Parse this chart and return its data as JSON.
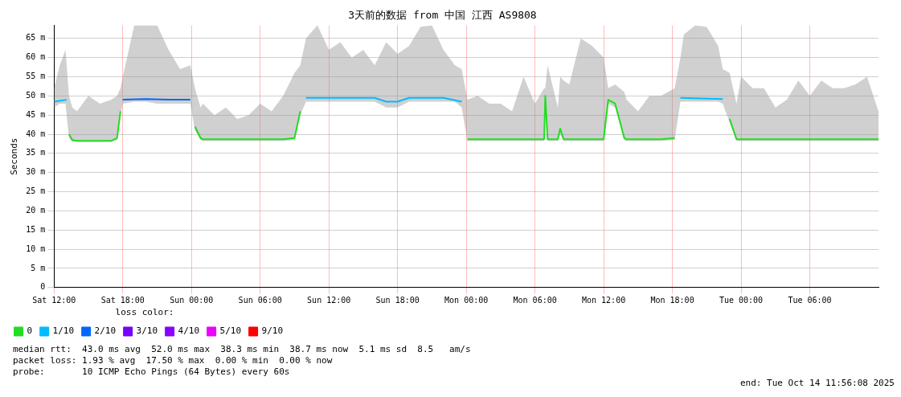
{
  "chart_data": {
    "type": "line",
    "title": "3天前的数据 from 中国 江西 AS9808",
    "ylabel": "Seconds",
    "legend_title": "loss color:",
    "legend": "bottom",
    "grid": true,
    "marker": "none",
    "line_style": "solid",
    "xlim": [
      "2025-10-11T12:00",
      "2025-10-14T12:00"
    ],
    "ylim": [
      0,
      68.4
    ],
    "xticks": [
      {
        "value": "2025-10-11T12:00",
        "label": "Sat 12:00"
      },
      {
        "value": "2025-10-11T18:00",
        "label": "Sat 18:00"
      },
      {
        "value": "2025-10-12T00:00",
        "label": "Sun 00:00"
      },
      {
        "value": "2025-10-12T06:00",
        "label": "Sun 06:00"
      },
      {
        "value": "2025-10-12T12:00",
        "label": "Sun 12:00"
      },
      {
        "value": "2025-10-12T18:00",
        "label": "Sun 18:00"
      },
      {
        "value": "2025-10-13T00:00",
        "label": "Mon 00:00"
      },
      {
        "value": "2025-10-13T06:00",
        "label": "Mon 06:00"
      },
      {
        "value": "2025-10-13T12:00",
        "label": "Mon 12:00"
      },
      {
        "value": "2025-10-13T18:00",
        "label": "Mon 18:00"
      },
      {
        "value": "2025-10-14T00:00",
        "label": "Tue 00:00"
      },
      {
        "value": "2025-10-14T06:00",
        "label": "Tue 06:00"
      }
    ],
    "yticks": [
      0,
      {
        "value": 5,
        "label": "5 m"
      },
      {
        "value": 10,
        "label": "10 m"
      },
      {
        "value": 15,
        "label": "15 m"
      },
      {
        "value": 20,
        "label": "20 m"
      },
      {
        "value": 25,
        "label": "25 m"
      },
      {
        "value": 30,
        "label": "30 m"
      },
      {
        "value": 35,
        "label": "35 m"
      },
      {
        "value": 40,
        "label": "40 m"
      },
      {
        "value": 45,
        "label": "45 m"
      },
      {
        "value": 50,
        "label": "50 m"
      },
      {
        "value": 55,
        "label": "55 m"
      },
      {
        "value": 60,
        "label": "60 m"
      },
      {
        "value": 65,
        "label": "65 m"
      }
    ],
    "series": [
      {
        "name": "0",
        "color": "#22dd22",
        "x": [
          "2025-10-11T12:00",
          "2025-10-11T12:30",
          "2025-10-11T13:00",
          "2025-10-11T13:18",
          "2025-10-11T13:36",
          "2025-10-11T14:00",
          "2025-10-11T15:00",
          "2025-10-11T16:00",
          "2025-10-11T17:00",
          "2025-10-11T17:30",
          "2025-10-11T17:48",
          "2025-10-11T18:00",
          "2025-10-11T19:00",
          "2025-10-11T20:00",
          "2025-10-11T21:00",
          "2025-10-11T22:00",
          "2025-10-11T23:00",
          "2025-10-11T23:54",
          "2025-10-12T00:18",
          "2025-10-12T00:48",
          "2025-10-12T01:00",
          "2025-10-12T02:00",
          "2025-10-12T03:00",
          "2025-10-12T04:00",
          "2025-10-12T05:00",
          "2025-10-12T06:00",
          "2025-10-12T07:00",
          "2025-10-12T08:00",
          "2025-10-12T09:00",
          "2025-10-12T09:30",
          "2025-10-12T10:00",
          "2025-10-12T11:00",
          "2025-10-12T12:00",
          "2025-10-12T13:00",
          "2025-10-12T14:00",
          "2025-10-12T15:00",
          "2025-10-12T16:00",
          "2025-10-12T17:00",
          "2025-10-12T18:00",
          "2025-10-12T19:00",
          "2025-10-12T20:00",
          "2025-10-12T21:00",
          "2025-10-12T22:00",
          "2025-10-12T23:00",
          "2025-10-12T23:36",
          "2025-10-13T00:06",
          "2025-10-13T01:00",
          "2025-10-13T02:00",
          "2025-10-13T03:00",
          "2025-10-13T04:00",
          "2025-10-13T05:00",
          "2025-10-13T06:00",
          "2025-10-13T06:48",
          "2025-10-13T06:54",
          "2025-10-13T07:06",
          "2025-10-13T08:00",
          "2025-10-13T08:12",
          "2025-10-13T08:30",
          "2025-10-13T09:00",
          "2025-10-13T10:00",
          "2025-10-13T11:00",
          "2025-10-13T12:00",
          "2025-10-13T12:24",
          "2025-10-13T13:00",
          "2025-10-13T13:48",
          "2025-10-13T14:00",
          "2025-10-13T15:00",
          "2025-10-13T16:00",
          "2025-10-13T17:00",
          "2025-10-13T18:12",
          "2025-10-13T18:42",
          "2025-10-13T19:00",
          "2025-10-13T20:00",
          "2025-10-13T21:00",
          "2025-10-13T22:00",
          "2025-10-13T22:24",
          "2025-10-13T23:00",
          "2025-10-13T23:36",
          "2025-10-14T00:00",
          "2025-10-14T01:00",
          "2025-10-14T02:00",
          "2025-10-14T03:00",
          "2025-10-14T04:00",
          "2025-10-14T05:00",
          "2025-10-14T06:00",
          "2025-10-14T07:00",
          "2025-10-14T08:00",
          "2025-10-14T09:00",
          "2025-10-14T10:00",
          "2025-10-14T11:00",
          "2025-10-14T12:00"
        ],
        "values": [
          null,
          null,
          null,
          40,
          38.5,
          38.3,
          38.3,
          38.3,
          38.3,
          39,
          46,
          null,
          null,
          null,
          null,
          null,
          null,
          null,
          42,
          39,
          38.7,
          38.7,
          38.7,
          38.7,
          38.7,
          38.7,
          38.7,
          38.7,
          39,
          46,
          null,
          null,
          null,
          null,
          null,
          null,
          null,
          null,
          null,
          null,
          null,
          null,
          null,
          null,
          null,
          38.7,
          38.7,
          38.7,
          38.7,
          38.7,
          38.7,
          38.7,
          38.7,
          50,
          38.7,
          38.7,
          41.5,
          38.7,
          38.7,
          38.7,
          38.7,
          38.7,
          49,
          48,
          39,
          38.7,
          38.7,
          38.7,
          38.7,
          39,
          null,
          null,
          null,
          null,
          null,
          null,
          44,
          38.7,
          38.7,
          38.7,
          38.7,
          38.7,
          38.7,
          38.7,
          38.7,
          38.7,
          38.7,
          38.7,
          38.7,
          38.7,
          38.7
        ],
        "lower": [
          47,
          48,
          48,
          39,
          38,
          38,
          38,
          38,
          38,
          38.5,
          45,
          48,
          48.5,
          48.5,
          48,
          48,
          48,
          48,
          41,
          38.5,
          38.2,
          38.2,
          38.2,
          38.2,
          38.2,
          38.2,
          38.2,
          38.2,
          38.5,
          45,
          48.5,
          48.5,
          48.5,
          48.5,
          48.5,
          48.5,
          48.5,
          47,
          47,
          48.5,
          48.5,
          48.5,
          48.5,
          48.5,
          47,
          38.2,
          38.2,
          38.2,
          38.2,
          38.2,
          38.2,
          38.2,
          38.2,
          48,
          38.2,
          38.2,
          40,
          38.2,
          38.2,
          38.2,
          38.2,
          38.2,
          48,
          47,
          38.5,
          38.2,
          38.2,
          38.2,
          38.2,
          38.5,
          48.5,
          48.5,
          48.5,
          48.5,
          48.5,
          48,
          43,
          38.2,
          38.2,
          38.2,
          38.2,
          38.2,
          38.2,
          38.2,
          38.2,
          38.2,
          38.2,
          38.2,
          38.2,
          38.2,
          38.2
        ],
        "upper": [
          52,
          58,
          62,
          50,
          47,
          46,
          50,
          48,
          49,
          50,
          52,
          55,
          68.4,
          68.4,
          68.4,
          62,
          57,
          58,
          52,
          47,
          48,
          45,
          47,
          44,
          45,
          48,
          46,
          50,
          56,
          58,
          65,
          68.4,
          62,
          64,
          60,
          62,
          58,
          64,
          61,
          63,
          68,
          68.4,
          62,
          58,
          57,
          49,
          50,
          48,
          48,
          46,
          55,
          48,
          52,
          52,
          58,
          47,
          55,
          54,
          53,
          65,
          63,
          60,
          52,
          53,
          51,
          49,
          46,
          50,
          50,
          52,
          60,
          66,
          68.4,
          68,
          63,
          57,
          56,
          48,
          55,
          52,
          52,
          47,
          49,
          54,
          50,
          54,
          52,
          52,
          53,
          55,
          46
        ]
      },
      {
        "name": "1/10",
        "color": "#00bbff",
        "x": [
          "2025-10-11T12:00",
          "2025-10-11T13:06",
          "2025-10-11T13:09",
          "2025-10-12T10:00",
          "2025-10-12T13:00",
          "2025-10-12T16:00",
          "2025-10-12T17:00",
          "2025-10-12T18:00",
          "2025-10-12T19:00",
          "2025-10-12T22:00",
          "2025-10-12T23:36",
          "2025-10-12T23:39",
          "2025-10-13T18:42",
          "2025-10-13T22:24"
        ],
        "values": [
          48.5,
          49,
          null,
          49.5,
          49.5,
          49.5,
          48.5,
          48.5,
          49.5,
          49.5,
          48.5,
          null,
          49.5,
          49.2
        ]
      },
      {
        "name": "2/10",
        "color": "#0066ff",
        "x": [
          "2025-10-11T18:00",
          "2025-10-11T20:00",
          "2025-10-11T22:00",
          "2025-10-11T23:54"
        ],
        "values": [
          49,
          49.2,
          49,
          49
        ]
      },
      {
        "name": "3/10",
        "color": "#7700ff"
      },
      {
        "name": "4/10",
        "color": "#8800ff"
      },
      {
        "name": "5/10",
        "color": "#ee00ff"
      },
      {
        "name": "9/10",
        "color": "#ff0000"
      }
    ],
    "annotations": [
      "median rtt:  43.0 ms avg  52.0 ms max  38.3 ms min  38.7 ms now  5.1 ms sd  8.5   am/s",
      "packet loss: 1.93 % avg  17.50 % max  0.00 % min  0.00 % now",
      "probe:       10 ICMP Echo Pings (64 Bytes) every 60s",
      "end: Tue Oct 14 11:56:08 2025"
    ]
  }
}
